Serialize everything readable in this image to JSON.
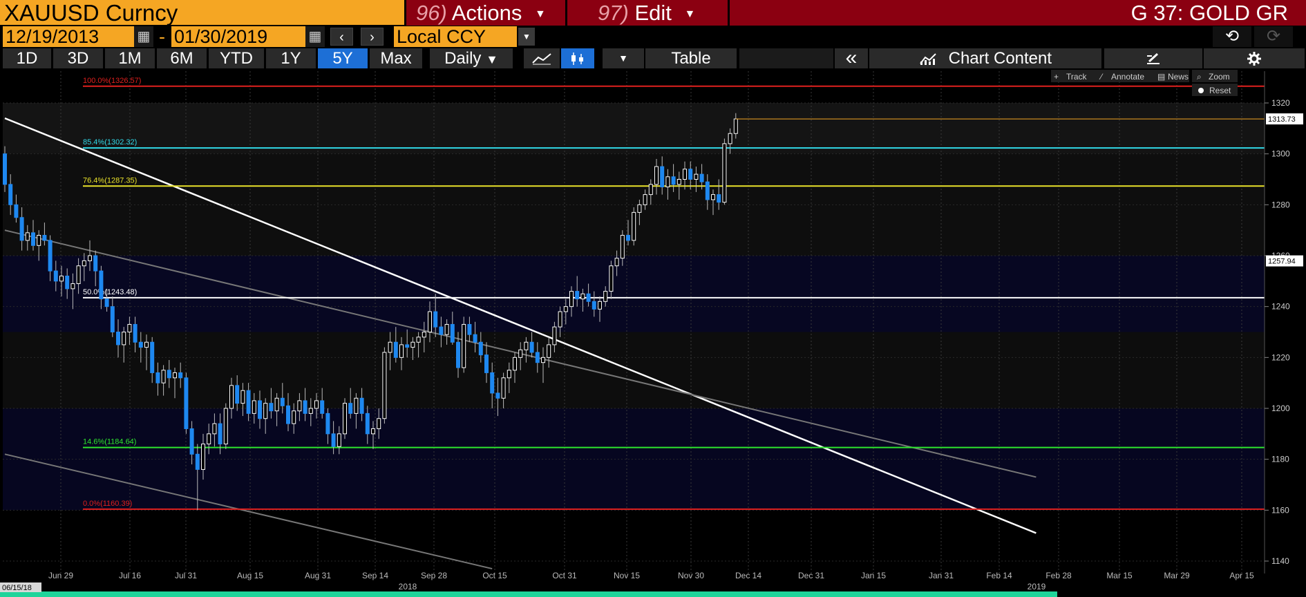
{
  "header": {
    "ticker": "XAUUSD Curncy",
    "actions_num": "96)",
    "actions_label": "Actions",
    "edit_num": "97)",
    "edit_label": "Edit",
    "chart_id": "G 37: GOLD GR"
  },
  "date_range": {
    "start": "12/19/2013",
    "dash": "-",
    "end": "01/30/2019",
    "currency": "Local CCY"
  },
  "toolbar": {
    "periods": [
      "1D",
      "3D",
      "1M",
      "6M",
      "YTD",
      "1Y",
      "5Y",
      "Max"
    ],
    "active_period": "5Y",
    "frequency": "Daily",
    "table_label": "Table",
    "chart_content_label": "Chart Content",
    "collapse_glyph": "«"
  },
  "chart_tools": {
    "track": "Track",
    "annotate": "Annotate",
    "news": "News",
    "zoom": "Zoom",
    "reset": "Reset"
  },
  "chart_data": {
    "type": "candlestick",
    "title": "",
    "xlabel": "",
    "ylabel": "",
    "ylim": [
      1137,
      1332
    ],
    "y_ticks": [
      1140,
      1160,
      1180,
      1200,
      1220,
      1240,
      1260,
      1280,
      1300,
      1320
    ],
    "x_ticks": [
      "Jun 29",
      "Jul 16",
      "Jul 31",
      "Aug 15",
      "Aug 31",
      "Sep 14",
      "Sep 28",
      "Oct 15",
      "Oct 31",
      "Nov 15",
      "Nov 30",
      "Dec 14",
      "Dec 31",
      "Jan 15",
      "Jan 31",
      "Feb 14",
      "Feb 28",
      "Mar 15",
      "Mar 29",
      "Apr 15"
    ],
    "year_labels": [
      "2018",
      "2019"
    ],
    "range_start_label": "06/15/18",
    "last_price": "1313.73",
    "marker_price": "1257.94",
    "fib_levels": [
      {
        "label": "100.0%(1326.57)",
        "value": 1326.57,
        "color": "#e0201e"
      },
      {
        "label": "85.4%(1302.32)",
        "value": 1302.32,
        "color": "#31d9e8"
      },
      {
        "label": "76.4%(1287.35)",
        "value": 1287.35,
        "color": "#e9e22a"
      },
      {
        "label": "50.0%(1243.48)",
        "value": 1243.48,
        "color": "#ffffff"
      },
      {
        "label": "14.6%(1184.64)",
        "value": 1184.64,
        "color": "#2ee62e"
      },
      {
        "label": "0.0%(1160.39)",
        "value": 1160.39,
        "color": "#e0201e"
      }
    ],
    "trend_lines": [
      {
        "from": [
          0,
          1314
        ],
        "to": [
          182,
          1151
        ],
        "color": "#ffffff"
      },
      {
        "from": [
          0,
          1270
        ],
        "to": [
          182,
          1173
        ],
        "color": "#777777"
      },
      {
        "from": [
          0,
          1182
        ],
        "to": [
          86,
          1137
        ],
        "color": "#777777"
      }
    ],
    "ohlc": [
      [
        1300,
        1303,
        1285,
        1288
      ],
      [
        1288,
        1292,
        1276,
        1280
      ],
      [
        1280,
        1284,
        1273,
        1275
      ],
      [
        1275,
        1279,
        1262,
        1266
      ],
      [
        1266,
        1272,
        1262,
        1269
      ],
      [
        1269,
        1274,
        1262,
        1264
      ],
      [
        1264,
        1270,
        1258,
        1268
      ],
      [
        1268,
        1273,
        1264,
        1266
      ],
      [
        1266,
        1268,
        1250,
        1254
      ],
      [
        1254,
        1258,
        1246,
        1250
      ],
      [
        1250,
        1256,
        1244,
        1252
      ],
      [
        1252,
        1255,
        1243,
        1247
      ],
      [
        1247,
        1253,
        1239,
        1249
      ],
      [
        1249,
        1259,
        1245,
        1256
      ],
      [
        1256,
        1261,
        1250,
        1258
      ],
      [
        1258,
        1266,
        1254,
        1260
      ],
      [
        1260,
        1262,
        1248,
        1254
      ],
      [
        1254,
        1256,
        1239,
        1243
      ],
      [
        1243,
        1247,
        1238,
        1240
      ],
      [
        1240,
        1244,
        1228,
        1230
      ],
      [
        1230,
        1235,
        1220,
        1225
      ],
      [
        1225,
        1232,
        1218,
        1230
      ],
      [
        1230,
        1236,
        1225,
        1233
      ],
      [
        1233,
        1236,
        1222,
        1226
      ],
      [
        1226,
        1230,
        1218,
        1224
      ],
      [
        1224,
        1229,
        1215,
        1226
      ],
      [
        1226,
        1228,
        1210,
        1214
      ],
      [
        1214,
        1218,
        1205,
        1210
      ],
      [
        1210,
        1217,
        1205,
        1215
      ],
      [
        1215,
        1219,
        1208,
        1212
      ],
      [
        1212,
        1216,
        1204,
        1214
      ],
      [
        1214,
        1218,
        1208,
        1212
      ],
      [
        1212,
        1214,
        1190,
        1192
      ],
      [
        1192,
        1195,
        1178,
        1182
      ],
      [
        1182,
        1186,
        1160,
        1176
      ],
      [
        1176,
        1190,
        1172,
        1186
      ],
      [
        1186,
        1194,
        1182,
        1190
      ],
      [
        1190,
        1198,
        1185,
        1194
      ],
      [
        1194,
        1198,
        1182,
        1186
      ],
      [
        1186,
        1202,
        1184,
        1200
      ],
      [
        1200,
        1212,
        1196,
        1209
      ],
      [
        1209,
        1213,
        1199,
        1202
      ],
      [
        1202,
        1210,
        1197,
        1207
      ],
      [
        1207,
        1210,
        1195,
        1198
      ],
      [
        1198,
        1206,
        1194,
        1203
      ],
      [
        1203,
        1207,
        1192,
        1196
      ],
      [
        1196,
        1204,
        1190,
        1202
      ],
      [
        1202,
        1208,
        1196,
        1199
      ],
      [
        1199,
        1206,
        1193,
        1204
      ],
      [
        1204,
        1210,
        1198,
        1201
      ],
      [
        1201,
        1206,
        1191,
        1194
      ],
      [
        1194,
        1202,
        1190,
        1199
      ],
      [
        1199,
        1206,
        1195,
        1203
      ],
      [
        1203,
        1208,
        1195,
        1198
      ],
      [
        1198,
        1204,
        1193,
        1200
      ],
      [
        1200,
        1206,
        1196,
        1203
      ],
      [
        1203,
        1208,
        1196,
        1198
      ],
      [
        1198,
        1200,
        1186,
        1190
      ],
      [
        1190,
        1195,
        1182,
        1185
      ],
      [
        1185,
        1193,
        1182,
        1190
      ],
      [
        1190,
        1204,
        1188,
        1202
      ],
      [
        1202,
        1208,
        1196,
        1198
      ],
      [
        1198,
        1206,
        1192,
        1204
      ],
      [
        1204,
        1208,
        1195,
        1198
      ],
      [
        1198,
        1201,
        1186,
        1190
      ],
      [
        1190,
        1195,
        1184,
        1192
      ],
      [
        1192,
        1200,
        1188,
        1196
      ],
      [
        1196,
        1224,
        1194,
        1222
      ],
      [
        1222,
        1230,
        1215,
        1226
      ],
      [
        1226,
        1232,
        1218,
        1220
      ],
      [
        1220,
        1228,
        1215,
        1225
      ],
      [
        1225,
        1231,
        1220,
        1224
      ],
      [
        1224,
        1228,
        1219,
        1226
      ],
      [
        1226,
        1230,
        1220,
        1228
      ],
      [
        1228,
        1234,
        1222,
        1230
      ],
      [
        1230,
        1242,
        1226,
        1238
      ],
      [
        1238,
        1245,
        1228,
        1232
      ],
      [
        1232,
        1236,
        1224,
        1229
      ],
      [
        1229,
        1235,
        1225,
        1233
      ],
      [
        1233,
        1238,
        1225,
        1226
      ],
      [
        1226,
        1230,
        1212,
        1216
      ],
      [
        1216,
        1236,
        1214,
        1233
      ],
      [
        1233,
        1236,
        1226,
        1229
      ],
      [
        1229,
        1234,
        1222,
        1226
      ],
      [
        1226,
        1230,
        1218,
        1221
      ],
      [
        1221,
        1226,
        1210,
        1214
      ],
      [
        1214,
        1218,
        1200,
        1206
      ],
      [
        1206,
        1212,
        1197,
        1204
      ],
      [
        1204,
        1214,
        1200,
        1212
      ],
      [
        1212,
        1218,
        1206,
        1215
      ],
      [
        1215,
        1222,
        1210,
        1220
      ],
      [
        1220,
        1226,
        1215,
        1223
      ],
      [
        1223,
        1228,
        1218,
        1226
      ],
      [
        1226,
        1230,
        1220,
        1222
      ],
      [
        1222,
        1226,
        1214,
        1218
      ],
      [
        1218,
        1224,
        1210,
        1220
      ],
      [
        1220,
        1228,
        1216,
        1225
      ],
      [
        1225,
        1234,
        1222,
        1232
      ],
      [
        1232,
        1240,
        1228,
        1238
      ],
      [
        1238,
        1243,
        1233,
        1240
      ],
      [
        1240,
        1248,
        1236,
        1246
      ],
      [
        1246,
        1252,
        1240,
        1243
      ],
      [
        1243,
        1247,
        1238,
        1245
      ],
      [
        1245,
        1249,
        1240,
        1242
      ],
      [
        1242,
        1246,
        1236,
        1239
      ],
      [
        1239,
        1244,
        1234,
        1242
      ],
      [
        1242,
        1248,
        1240,
        1246
      ],
      [
        1246,
        1258,
        1243,
        1256
      ],
      [
        1256,
        1262,
        1252,
        1259
      ],
      [
        1259,
        1270,
        1256,
        1268
      ],
      [
        1268,
        1274,
        1264,
        1266
      ],
      [
        1266,
        1279,
        1264,
        1277
      ],
      [
        1277,
        1282,
        1272,
        1280
      ],
      [
        1280,
        1286,
        1278,
        1284
      ],
      [
        1284,
        1290,
        1280,
        1288
      ],
      [
        1288,
        1298,
        1284,
        1295
      ],
      [
        1295,
        1299,
        1284,
        1287
      ],
      [
        1287,
        1294,
        1282,
        1291
      ],
      [
        1291,
        1296,
        1285,
        1288
      ],
      [
        1288,
        1293,
        1282,
        1290
      ],
      [
        1290,
        1297,
        1286,
        1294
      ],
      [
        1294,
        1297,
        1286,
        1290
      ],
      [
        1290,
        1295,
        1285,
        1292
      ],
      [
        1292,
        1296,
        1286,
        1289
      ],
      [
        1289,
        1292,
        1278,
        1282
      ],
      [
        1282,
        1286,
        1276,
        1284
      ],
      [
        1284,
        1290,
        1278,
        1281
      ],
      [
        1281,
        1306,
        1280,
        1304
      ],
      [
        1304,
        1310,
        1300,
        1308
      ],
      [
        1308,
        1316,
        1306,
        1313.73
      ]
    ]
  }
}
